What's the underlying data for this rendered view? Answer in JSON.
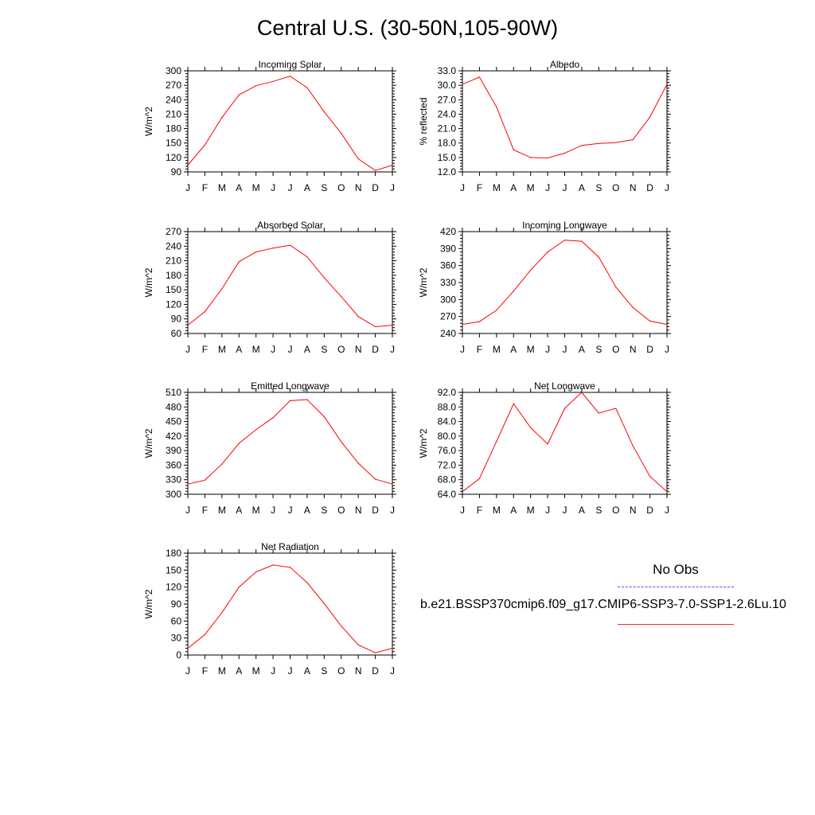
{
  "title": "Central U.S. (30-50N,105-90W)",
  "legend": {
    "obs_label": "No Obs",
    "obs_color": "#4455ee",
    "model_label": "b.e21.BSSP370cmip6.f09_g17.CMIP6-SSP3-7.0-SSP1-2.6Lu.10",
    "model_color": "#ff0000"
  },
  "chart_data": [
    {
      "type": "line",
      "title": "Incoming Solar",
      "ylabel": "W/m^2",
      "ylim": [
        90,
        300
      ],
      "yticks": [
        "90",
        "120",
        "150",
        "180",
        "210",
        "240",
        "270",
        "300"
      ],
      "categories": [
        "J",
        "F",
        "M",
        "A",
        "M",
        "J",
        "J",
        "A",
        "S",
        "O",
        "N",
        "D",
        "J"
      ],
      "series": [
        {
          "values": [
            104,
            146,
            203,
            250,
            269,
            278,
            289,
            265,
            215,
            170,
            117,
            93,
            104
          ]
        }
      ]
    },
    {
      "type": "line",
      "title": "Albedo",
      "ylabel": "% reflected",
      "ylim": [
        12,
        33
      ],
      "yticks": [
        "12.0",
        "15.0",
        "18.0",
        "21.0",
        "24.0",
        "27.0",
        "30.0",
        "33.0"
      ],
      "categories": [
        "J",
        "F",
        "M",
        "A",
        "M",
        "J",
        "J",
        "A",
        "S",
        "O",
        "N",
        "D",
        "J"
      ],
      "series": [
        {
          "values": [
            30.2,
            31.7,
            25.5,
            16.6,
            15.0,
            14.9,
            15.9,
            17.5,
            17.9,
            18.1,
            18.7,
            23.4,
            30.2
          ]
        }
      ]
    },
    {
      "type": "line",
      "title": "Absorbed Solar",
      "ylabel": "W/m^2",
      "ylim": [
        60,
        270
      ],
      "yticks": [
        "60",
        "90",
        "120",
        "150",
        "180",
        "210",
        "240",
        "270"
      ],
      "categories": [
        "J",
        "F",
        "M",
        "A",
        "M",
        "J",
        "J",
        "A",
        "S",
        "O",
        "N",
        "D",
        "J"
      ],
      "series": [
        {
          "values": [
            77,
            105,
            152,
            208,
            228,
            236,
            242,
            218,
            175,
            136,
            95,
            74,
            77
          ]
        }
      ]
    },
    {
      "type": "line",
      "title": "Incoming Longwave",
      "ylabel": "W/m^2",
      "ylim": [
        240,
        420
      ],
      "yticks": [
        "240",
        "270",
        "300",
        "330",
        "360",
        "390",
        "420"
      ],
      "categories": [
        "J",
        "F",
        "M",
        "A",
        "M",
        "J",
        "J",
        "A",
        "S",
        "O",
        "N",
        "D",
        "J"
      ],
      "series": [
        {
          "values": [
            256,
            261,
            281,
            315,
            352,
            384,
            405,
            403,
            375,
            322,
            286,
            262,
            256
          ]
        }
      ]
    },
    {
      "type": "line",
      "title": "Emitted Longwave",
      "ylabel": "W/m^2",
      "ylim": [
        300,
        510
      ],
      "yticks": [
        "300",
        "330",
        "360",
        "390",
        "420",
        "450",
        "480",
        "510"
      ],
      "categories": [
        "J",
        "F",
        "M",
        "A",
        "M",
        "J",
        "J",
        "A",
        "S",
        "O",
        "N",
        "D",
        "J"
      ],
      "series": [
        {
          "values": [
            321,
            329,
            362,
            405,
            433,
            458,
            493,
            495,
            460,
            408,
            364,
            331,
            321
          ]
        }
      ]
    },
    {
      "type": "line",
      "title": "Net Longwave",
      "ylabel": "W/m^2",
      "ylim": [
        64,
        92
      ],
      "yticks": [
        "64.0",
        "68.0",
        "72.0",
        "76.0",
        "80.0",
        "84.0",
        "88.0",
        "92.0"
      ],
      "categories": [
        "J",
        "F",
        "M",
        "A",
        "M",
        "J",
        "J",
        "A",
        "S",
        "O",
        "N",
        "D",
        "J"
      ],
      "series": [
        {
          "values": [
            64.7,
            68.3,
            78.5,
            88.9,
            82.3,
            77.8,
            87.6,
            92.0,
            86.3,
            87.6,
            77.3,
            68.9,
            64.7
          ]
        }
      ]
    },
    {
      "type": "line",
      "title": "Net Radiation",
      "ylabel": "W/m^2",
      "ylim": [
        0,
        180
      ],
      "yticks": [
        "0",
        "30",
        "60",
        "90",
        "120",
        "150",
        "180"
      ],
      "categories": [
        "J",
        "F",
        "M",
        "A",
        "M",
        "J",
        "J",
        "A",
        "S",
        "O",
        "N",
        "D",
        "J"
      ],
      "series": [
        {
          "values": [
            12,
            36,
            75,
            120,
            147,
            159,
            155,
            128,
            91,
            51,
            18,
            4,
            12
          ]
        }
      ]
    }
  ]
}
